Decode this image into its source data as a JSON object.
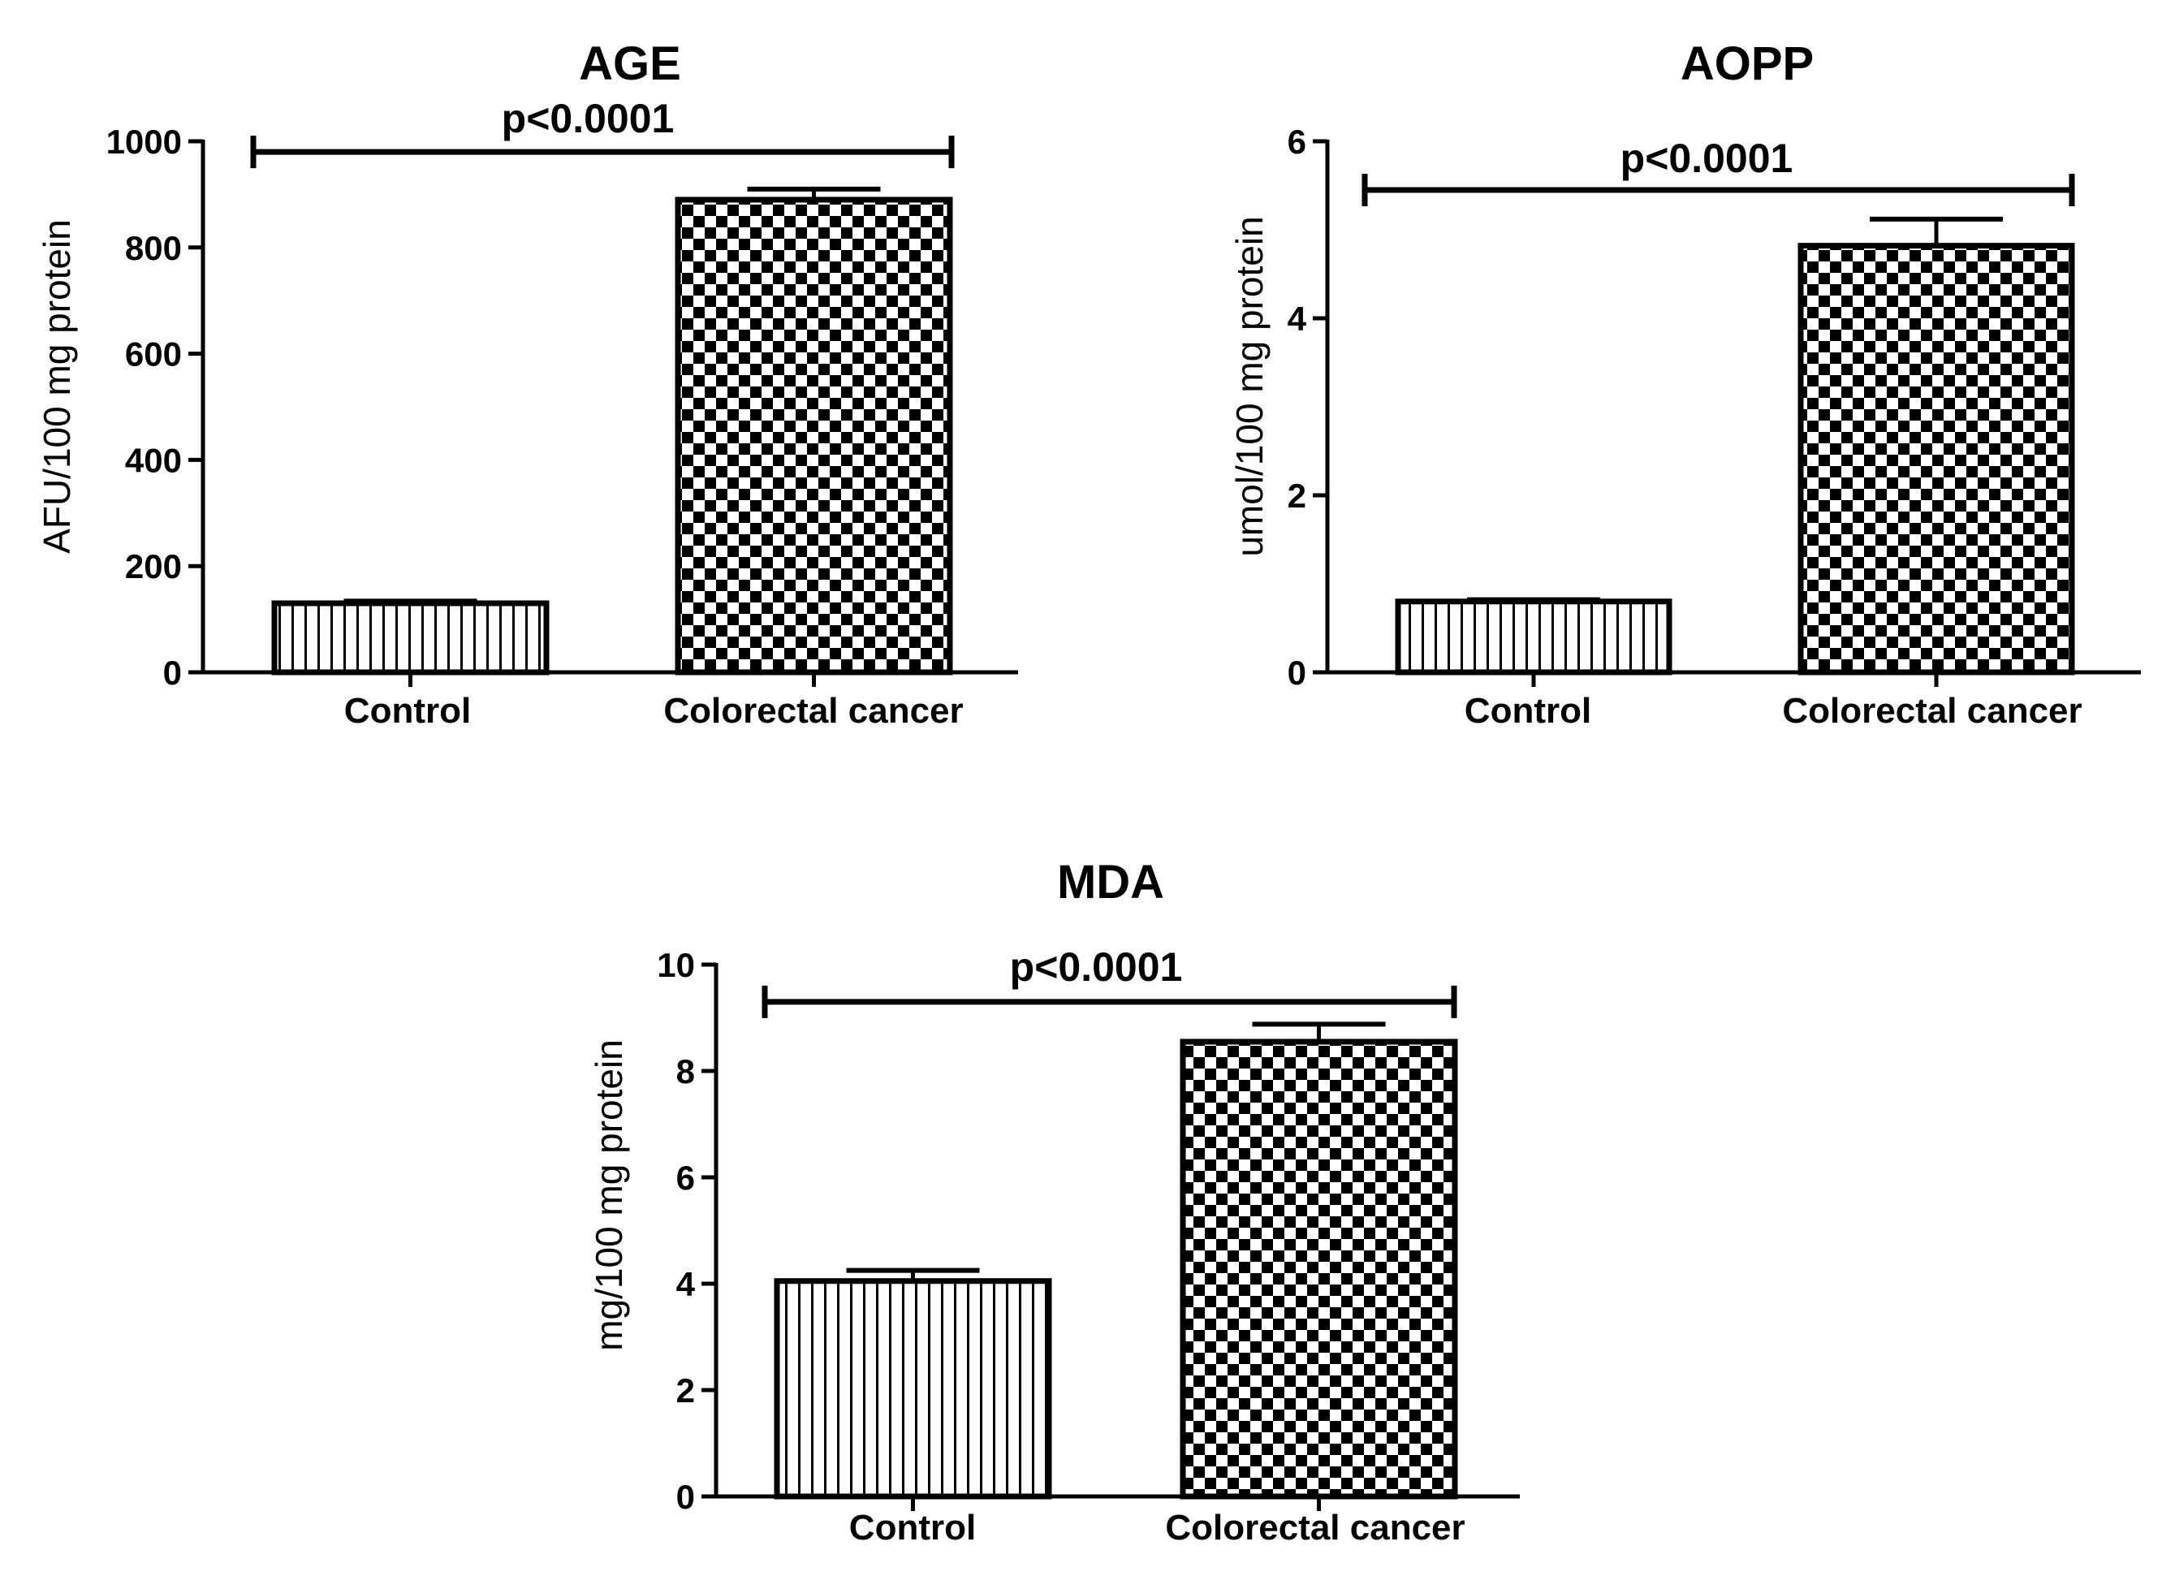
{
  "chart_data": [
    {
      "type": "bar",
      "title": "AGE",
      "ylabel": "AFU/100 mg protein",
      "xlabel": "",
      "categories": [
        "Control",
        "Colorectal cancer"
      ],
      "values": [
        130,
        890
      ],
      "errors": [
        4,
        20
      ],
      "patterns": [
        "vertical-stripes",
        "checkerboard"
      ],
      "ylim": [
        0,
        1000
      ],
      "yticks": [
        0,
        200,
        400,
        600,
        800,
        1000
      ],
      "ytick_labels": [
        "0",
        "200",
        "400",
        "600",
        "800",
        "1000"
      ],
      "significance": {
        "label": "p<0.0001",
        "y": 980
      },
      "grid": false
    },
    {
      "type": "bar",
      "title": "AOPP",
      "ylabel": "umol/100 mg protein",
      "xlabel": "",
      "categories": [
        "Control",
        "Colorectal cancer"
      ],
      "values": [
        0.8,
        4.82
      ],
      "errors": [
        0.02,
        0.3
      ],
      "patterns": [
        "vertical-stripes",
        "checkerboard"
      ],
      "ylim": [
        0,
        6
      ],
      "yticks": [
        0,
        2,
        4,
        6
      ],
      "ytick_labels": [
        "0",
        "2",
        "4",
        "6"
      ],
      "significance": {
        "label": "p<0.0001",
        "y": 5.45
      },
      "grid": false
    },
    {
      "type": "bar",
      "title": "MDA",
      "ylabel": "mg/100 mg protein",
      "xlabel": "",
      "categories": [
        "Control",
        "Colorectal cancer"
      ],
      "values": [
        4.05,
        8.55
      ],
      "errors": [
        0.2,
        0.33
      ],
      "patterns": [
        "vertical-stripes",
        "checkerboard"
      ],
      "ylim": [
        0,
        10
      ],
      "yticks": [
        0,
        2,
        4,
        6,
        8,
        10
      ],
      "ytick_labels": [
        "0",
        "2",
        "4",
        "6",
        "8",
        "10"
      ],
      "significance": {
        "label": "p<0.0001",
        "y": 9.3
      },
      "grid": false
    }
  ]
}
